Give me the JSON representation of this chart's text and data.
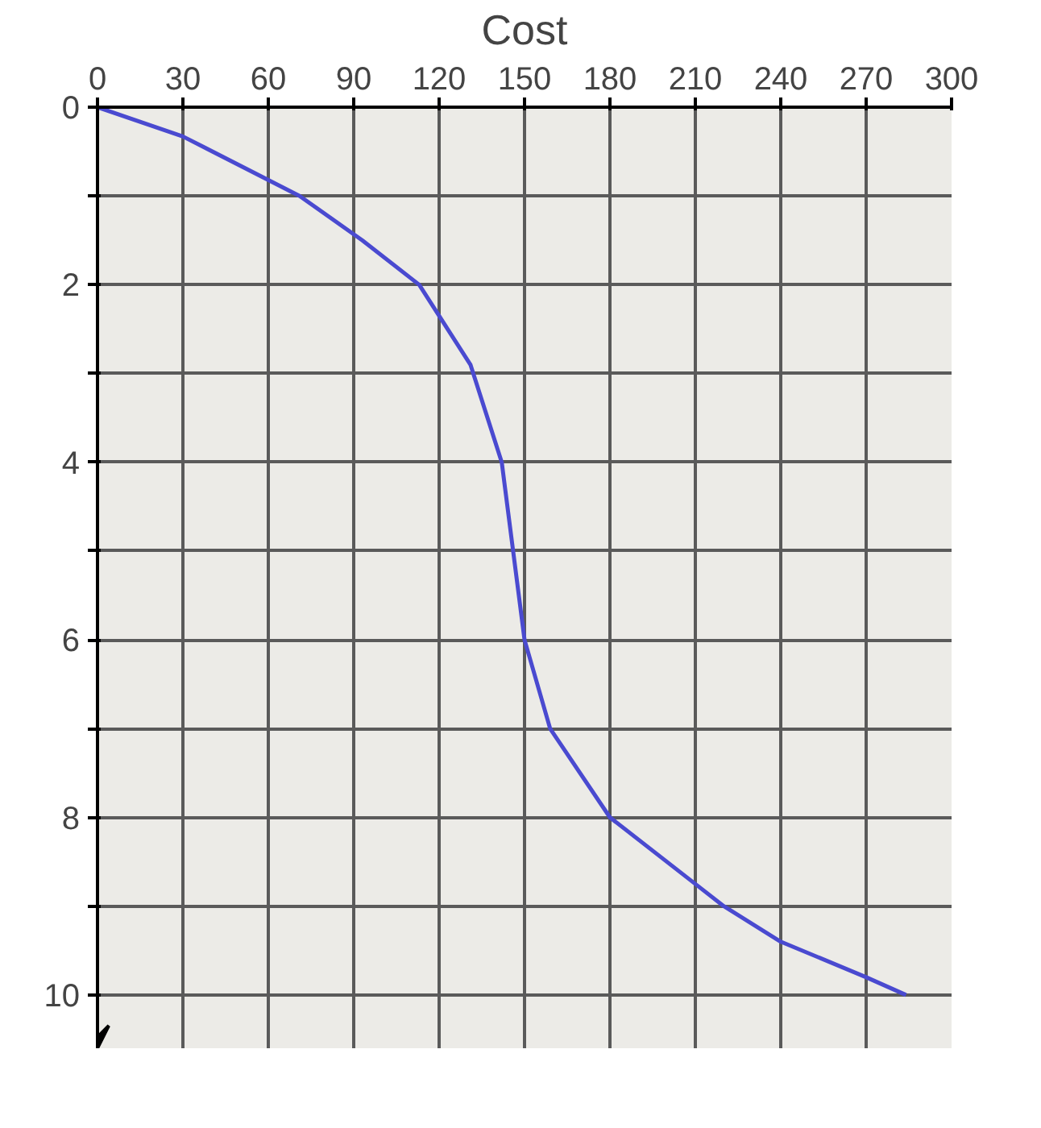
{
  "chart_data": {
    "type": "line",
    "xlabel": "Cost",
    "series": [
      {
        "color": "#4a4ad0",
        "x": [
          0,
          30,
          71,
          93,
          113,
          131,
          142,
          146,
          150,
          159,
          180,
          210,
          220,
          240,
          270,
          284
        ],
        "values": [
          0,
          0.33,
          1,
          1.5,
          2,
          2.9,
          4,
          5,
          6,
          7,
          8,
          8.75,
          9,
          9.4,
          9.8,
          10
        ]
      }
    ],
    "xlim": [
      0,
      300
    ],
    "xticks": [
      0,
      30,
      60,
      90,
      120,
      150,
      180,
      210,
      240,
      270,
      300
    ],
    "ylim": [
      10.6,
      0
    ],
    "yticks": [
      0,
      {
        "value": 1,
        "label": null
      },
      2,
      {
        "value": 3,
        "label": null
      },
      4,
      {
        "value": 5,
        "label": null
      },
      6,
      {
        "value": 7,
        "label": null
      },
      8,
      {
        "value": 9,
        "label": null
      },
      10
    ],
    "grid": true,
    "marker": "none",
    "line_style": "solid"
  }
}
